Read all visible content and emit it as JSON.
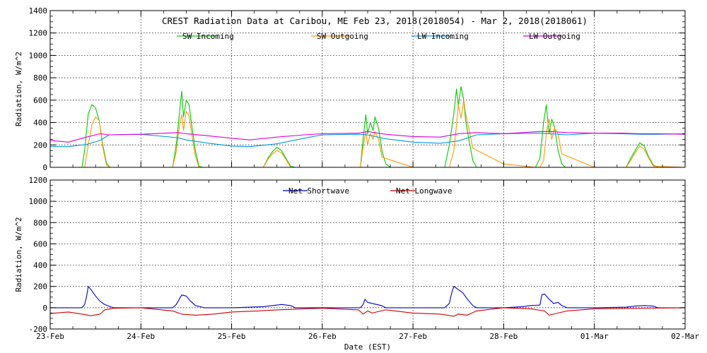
{
  "chart_data": [
    {
      "type": "line",
      "title": "CREST Radiation Data at Caribou, ME   Feb 23, 2018(2018054) - Mar  2, 2018(2018061)",
      "xlabel": "",
      "ylabel": "Radiation, W/m^2",
      "xlim": [
        0,
        7
      ],
      "ylim": [
        0,
        1400
      ],
      "yticks": [
        0,
        200,
        400,
        600,
        800,
        1000,
        1200,
        1400
      ],
      "x_tick_labels": [],
      "grid": true,
      "legend_position": "top-center",
      "series": [
        {
          "name": "SW Incoming",
          "color": "#00cc00",
          "x": [
            0.0,
            0.35,
            0.38,
            0.42,
            0.46,
            0.5,
            0.54,
            0.58,
            0.62,
            0.66,
            0.7,
            1.0,
            1.35,
            1.39,
            1.43,
            1.45,
            1.47,
            1.5,
            1.53,
            1.56,
            1.6,
            1.64,
            1.68,
            2.0,
            2.35,
            2.4,
            2.45,
            2.5,
            2.55,
            2.6,
            2.65,
            2.7,
            3.0,
            3.42,
            3.45,
            3.48,
            3.5,
            3.53,
            3.56,
            3.58,
            3.62,
            3.66,
            3.7,
            3.75,
            4.0,
            4.35,
            4.4,
            4.45,
            4.48,
            4.5,
            4.53,
            4.56,
            4.58,
            4.62,
            4.66,
            4.7,
            5.0,
            5.35,
            5.4,
            5.44,
            5.47,
            5.5,
            5.53,
            5.56,
            5.6,
            5.64,
            5.68,
            6.0,
            6.35,
            6.4,
            6.45,
            6.5,
            6.55,
            6.6,
            6.65,
            6.7,
            7.0
          ],
          "y": [
            0,
            0,
            150,
            480,
            560,
            530,
            420,
            200,
            40,
            0,
            0,
            0,
            0,
            200,
            520,
            680,
            450,
            600,
            560,
            380,
            150,
            10,
            0,
            0,
            0,
            80,
            140,
            180,
            150,
            80,
            10,
            0,
            0,
            0,
            250,
            470,
            300,
            400,
            330,
            450,
            350,
            140,
            30,
            0,
            0,
            0,
            200,
            480,
            700,
            550,
            720,
            600,
            420,
            230,
            60,
            0,
            0,
            0,
            80,
            400,
            560,
            300,
            430,
            360,
            150,
            30,
            0,
            0,
            0,
            80,
            150,
            220,
            190,
            90,
            20,
            0,
            0
          ]
        },
        {
          "name": "SW Outgoing",
          "color": "#ff9900",
          "x": [
            0.0,
            0.38,
            0.42,
            0.46,
            0.5,
            0.54,
            0.58,
            0.62,
            0.66,
            1.0,
            1.35,
            1.39,
            1.43,
            1.45,
            1.47,
            1.5,
            1.53,
            1.56,
            1.6,
            1.64,
            2.0,
            2.35,
            2.4,
            2.45,
            2.5,
            2.55,
            2.6,
            2.65,
            3.0,
            3.42,
            3.45,
            3.48,
            3.5,
            3.53,
            3.56,
            3.58,
            3.62,
            3.66,
            4.0,
            4.35,
            4.4,
            4.45,
            4.48,
            4.5,
            4.53,
            4.56,
            4.58,
            4.62,
            4.66,
            5.0,
            5.35,
            5.4,
            5.44,
            5.47,
            5.5,
            5.53,
            5.56,
            5.6,
            5.64,
            6.0,
            6.35,
            6.4,
            6.45,
            6.5,
            6.55,
            6.6,
            6.65,
            7.0
          ],
          "y": [
            0,
            0,
            200,
            380,
            450,
            420,
            180,
            20,
            0,
            0,
            0,
            140,
            400,
            470,
            330,
            500,
            460,
            300,
            100,
            0,
            0,
            0,
            70,
            120,
            150,
            130,
            70,
            0,
            0,
            0,
            180,
            320,
            200,
            300,
            250,
            320,
            250,
            90,
            0,
            0,
            0,
            150,
            380,
            560,
            440,
            600,
            480,
            330,
            170,
            30,
            0,
            0,
            60,
            300,
            430,
            250,
            350,
            300,
            120,
            0,
            0,
            60,
            130,
            190,
            160,
            80,
            10,
            0
          ]
        },
        {
          "name": "LW Incoming",
          "color": "#0099dd",
          "x": [
            0.0,
            0.2,
            0.4,
            0.55,
            0.65,
            1.0,
            1.4,
            1.5,
            1.7,
            2.0,
            2.2,
            2.5,
            2.8,
            3.0,
            3.4,
            3.5,
            3.7,
            4.0,
            4.3,
            4.5,
            4.7,
            5.0,
            5.4,
            5.5,
            5.7,
            6.0,
            6.3,
            6.5,
            6.7,
            7.0
          ],
          "y": [
            185,
            185,
            205,
            240,
            290,
            295,
            265,
            245,
            220,
            190,
            185,
            210,
            260,
            290,
            295,
            290,
            255,
            225,
            215,
            235,
            290,
            300,
            305,
            300,
            290,
            305,
            300,
            295,
            295,
            300
          ]
        },
        {
          "name": "LW Outgoing",
          "color": "#dd00dd",
          "x": [
            0.0,
            0.2,
            0.4,
            0.55,
            0.65,
            1.0,
            1.4,
            1.5,
            1.7,
            2.0,
            2.2,
            2.5,
            2.8,
            3.0,
            3.4,
            3.5,
            3.7,
            4.0,
            4.3,
            4.5,
            4.7,
            5.0,
            5.4,
            5.5,
            5.7,
            6.0,
            6.3,
            6.5,
            6.7,
            7.0
          ],
          "y": [
            240,
            225,
            270,
            300,
            290,
            295,
            310,
            300,
            285,
            260,
            245,
            270,
            290,
            300,
            305,
            320,
            295,
            275,
            270,
            300,
            310,
            300,
            320,
            320,
            310,
            305,
            305,
            300,
            300,
            295
          ]
        }
      ]
    },
    {
      "type": "line",
      "title": "",
      "xlabel": "Date (EST)",
      "ylabel": "Radiation, W/m^2",
      "xlim": [
        0,
        7
      ],
      "ylim": [
        -200,
        1200
      ],
      "yticks": [
        -200,
        0,
        200,
        400,
        600,
        800,
        1000,
        1200
      ],
      "x_tick_labels": [
        "23-Feb",
        "24-Feb",
        "25-Feb",
        "26-Feb",
        "27-Feb",
        "28-Feb",
        "01-Mar",
        "02-Mar"
      ],
      "grid": true,
      "legend_position": "top-center",
      "series": [
        {
          "name": "Net Shortwave",
          "color": "#0000cc",
          "x": [
            0.0,
            0.35,
            0.38,
            0.4,
            0.42,
            0.45,
            0.5,
            0.55,
            0.6,
            0.66,
            0.7,
            1.0,
            1.35,
            1.39,
            1.43,
            1.45,
            1.5,
            1.55,
            1.6,
            1.7,
            2.0,
            2.35,
            2.45,
            2.55,
            2.65,
            2.7,
            3.0,
            3.42,
            3.45,
            3.47,
            3.5,
            3.55,
            3.6,
            3.65,
            3.7,
            4.0,
            4.35,
            4.4,
            4.43,
            4.45,
            4.5,
            4.55,
            4.6,
            4.66,
            4.7,
            5.0,
            5.2,
            5.3,
            5.4,
            5.42,
            5.45,
            5.5,
            5.55,
            5.6,
            5.64,
            5.7,
            6.0,
            6.35,
            6.45,
            6.55,
            6.65,
            6.7,
            7.0
          ],
          "y": [
            0,
            0,
            30,
            100,
            200,
            170,
            110,
            60,
            30,
            10,
            0,
            0,
            0,
            30,
            90,
            120,
            110,
            60,
            20,
            0,
            0,
            10,
            20,
            30,
            20,
            0,
            0,
            0,
            30,
            80,
            50,
            40,
            30,
            20,
            0,
            0,
            0,
            40,
            150,
            200,
            170,
            140,
            80,
            20,
            0,
            0,
            10,
            20,
            25,
            120,
            130,
            80,
            40,
            50,
            20,
            0,
            0,
            5,
            15,
            20,
            15,
            0,
            0
          ]
        },
        {
          "name": "Net Longwave",
          "color": "#cc0000",
          "x": [
            0.0,
            0.2,
            0.35,
            0.45,
            0.55,
            0.6,
            0.7,
            1.0,
            1.35,
            1.45,
            1.6,
            1.8,
            2.0,
            2.3,
            2.5,
            2.8,
            3.0,
            3.4,
            3.45,
            3.5,
            3.55,
            3.6,
            3.7,
            4.0,
            4.3,
            4.45,
            4.5,
            4.6,
            4.7,
            4.9,
            5.0,
            5.3,
            5.45,
            5.5,
            5.6,
            5.7,
            6.0,
            6.5,
            7.0
          ],
          "y": [
            -55,
            -40,
            -60,
            -75,
            -60,
            -20,
            -5,
            0,
            -30,
            -60,
            -70,
            -60,
            -40,
            -30,
            -20,
            -10,
            -5,
            -20,
            -60,
            -30,
            -50,
            -40,
            -20,
            -50,
            -60,
            -80,
            -60,
            -70,
            -30,
            -10,
            0,
            -10,
            -30,
            -70,
            -50,
            -30,
            -10,
            -5,
            0
          ]
        }
      ]
    }
  ]
}
